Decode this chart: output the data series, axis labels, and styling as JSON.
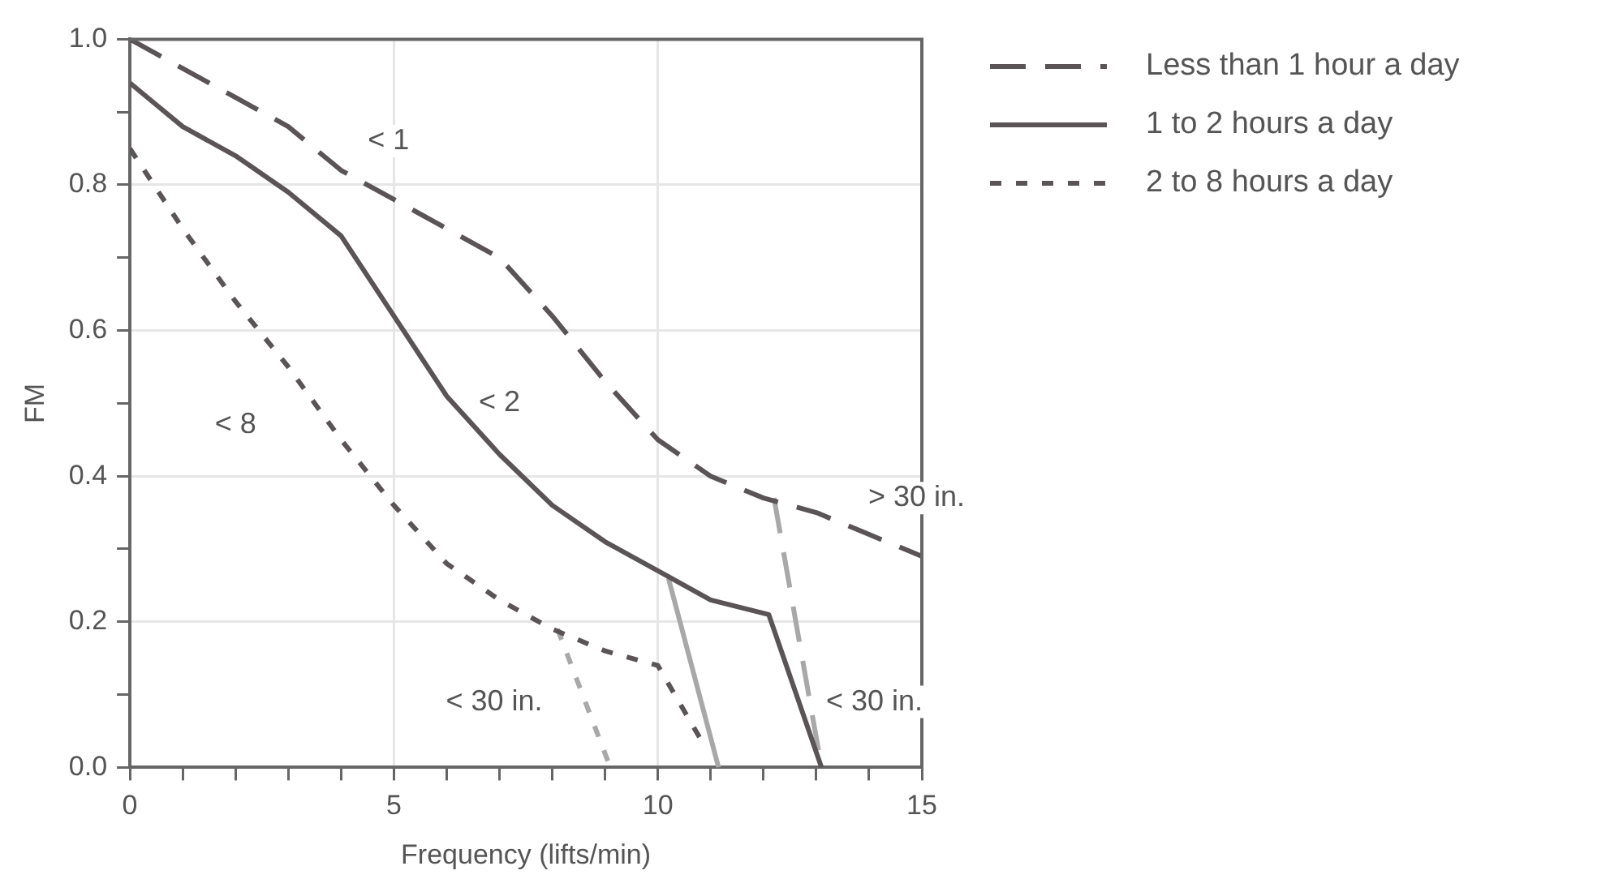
{
  "chart_data": {
    "type": "line",
    "xlabel": "Frequency (lifts/min)",
    "ylabel": "FM",
    "xlim": [
      0,
      15
    ],
    "ylim": [
      0,
      1.0
    ],
    "xticks": [
      0,
      {
        "value": 1,
        "label": null
      },
      {
        "value": 2,
        "label": null
      },
      {
        "value": 3,
        "label": null
      },
      {
        "value": 4,
        "label": null
      },
      5,
      {
        "value": 6,
        "label": null
      },
      {
        "value": 7,
        "label": null
      },
      {
        "value": 8,
        "label": null
      },
      {
        "value": 9,
        "label": null
      },
      10,
      {
        "value": 11,
        "label": null
      },
      {
        "value": 12,
        "label": null
      },
      {
        "value": 13,
        "label": null
      },
      {
        "value": 14,
        "label": null
      },
      15
    ],
    "yticks": [
      {
        "value": 0,
        "label": "0.0"
      },
      {
        "value": 0.1,
        "label": null
      },
      0.2,
      {
        "value": 0.3,
        "label": null
      },
      0.4,
      {
        "value": 0.5,
        "label": null
      },
      0.6,
      {
        "value": 0.7,
        "label": null
      },
      0.8,
      {
        "value": 0.9,
        "label": null
      },
      {
        "value": 1,
        "label": "1.0"
      }
    ],
    "grid": true,
    "legend": "right",
    "marker": "none",
    "series": [
      {
        "name": "Less than 1 hour a day",
        "color": "#5a5456",
        "line_style": "dashed",
        "x": [
          0,
          1,
          2,
          3,
          4,
          5,
          6,
          7,
          8,
          9,
          10,
          11,
          12,
          13,
          14,
          15
        ],
        "values": [
          1.0,
          0.96,
          0.92,
          0.88,
          0.82,
          0.78,
          0.74,
          0.7,
          0.62,
          0.53,
          0.45,
          0.4,
          0.37,
          0.35,
          0.32,
          0.29
        ]
      },
      {
        "name": "1 to 2 hours a day",
        "color": "#5a5456",
        "line_style": "solid",
        "x": [
          0,
          0.5,
          1,
          2,
          3,
          4,
          5,
          6,
          7,
          8,
          9,
          10,
          11,
          12.1,
          13.1
        ],
        "values": [
          0.94,
          0.91,
          0.88,
          0.84,
          0.79,
          0.73,
          0.62,
          0.51,
          0.43,
          0.36,
          0.31,
          0.27,
          0.23,
          0.21,
          0.0
        ]
      },
      {
        "name": "2 to 8 hours a day",
        "color": "#5a5456",
        "line_style": "dotted",
        "x": [
          0,
          1,
          2,
          3,
          4,
          5,
          6,
          7,
          8,
          9,
          10,
          10.8
        ],
        "values": [
          0.85,
          0.74,
          0.64,
          0.55,
          0.45,
          0.36,
          0.28,
          0.23,
          0.19,
          0.16,
          0.14,
          0.04
        ]
      },
      {
        "color": "#a8a8a8",
        "line_style": "dashed",
        "x": [
          12.2,
          13.1
        ],
        "values": [
          0.37,
          0.0
        ]
      },
      {
        "color": "#a8a8a8",
        "line_style": "solid",
        "x": [
          10.2,
          11.15
        ],
        "values": [
          0.26,
          0.0
        ]
      },
      {
        "color": "#a8a8a8",
        "line_style": "dotted",
        "x": [
          8.1,
          9.1
        ],
        "values": [
          0.19,
          0.0
        ]
      }
    ],
    "annotations": [
      {
        "text": "< 1",
        "x": 4.9,
        "y": 0.86
      },
      {
        "text": "< 2",
        "x": 7.0,
        "y": 0.5
      },
      {
        "text": "< 8",
        "x": 2.0,
        "y": 0.47
      },
      "> 30 in.",
      "< 30 in.",
      "< 30 in."
    ]
  }
}
